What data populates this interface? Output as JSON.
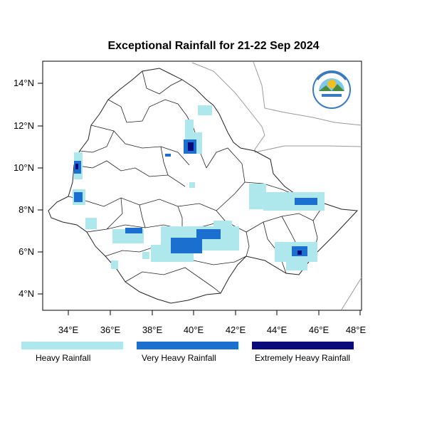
{
  "map": {
    "title": "Exceptional Rainfall for 21-22 Sep 2024",
    "lon_ticks": [
      "34°E",
      "36°E",
      "38°E",
      "40°E",
      "42°E",
      "44°E",
      "46°E",
      "48°E"
    ],
    "lat_ticks": [
      "14°N",
      "12°N",
      "10°N",
      "8°N",
      "6°N",
      "4°N"
    ],
    "lon_range": [
      32.9,
      48.1
    ],
    "lat_range": [
      3.3,
      15.1
    ]
  },
  "legend": {
    "items": [
      {
        "label": "Heavy Rainfall",
        "color": "#aee8ec"
      },
      {
        "label": "Very Heavy Rainfall",
        "color": "#1a6fcf"
      },
      {
        "label": "Extremely Heavy Rainfall",
        "color": "#0a0a7a"
      }
    ]
  },
  "colors": {
    "heavy": "#aee8ec",
    "very_heavy": "#1a6fcf",
    "extreme": "#0a0a7a",
    "boundary": "#222222",
    "neighbor": "#999999"
  },
  "logo_icon": "ethiopian-meteorology-institute-logo"
}
